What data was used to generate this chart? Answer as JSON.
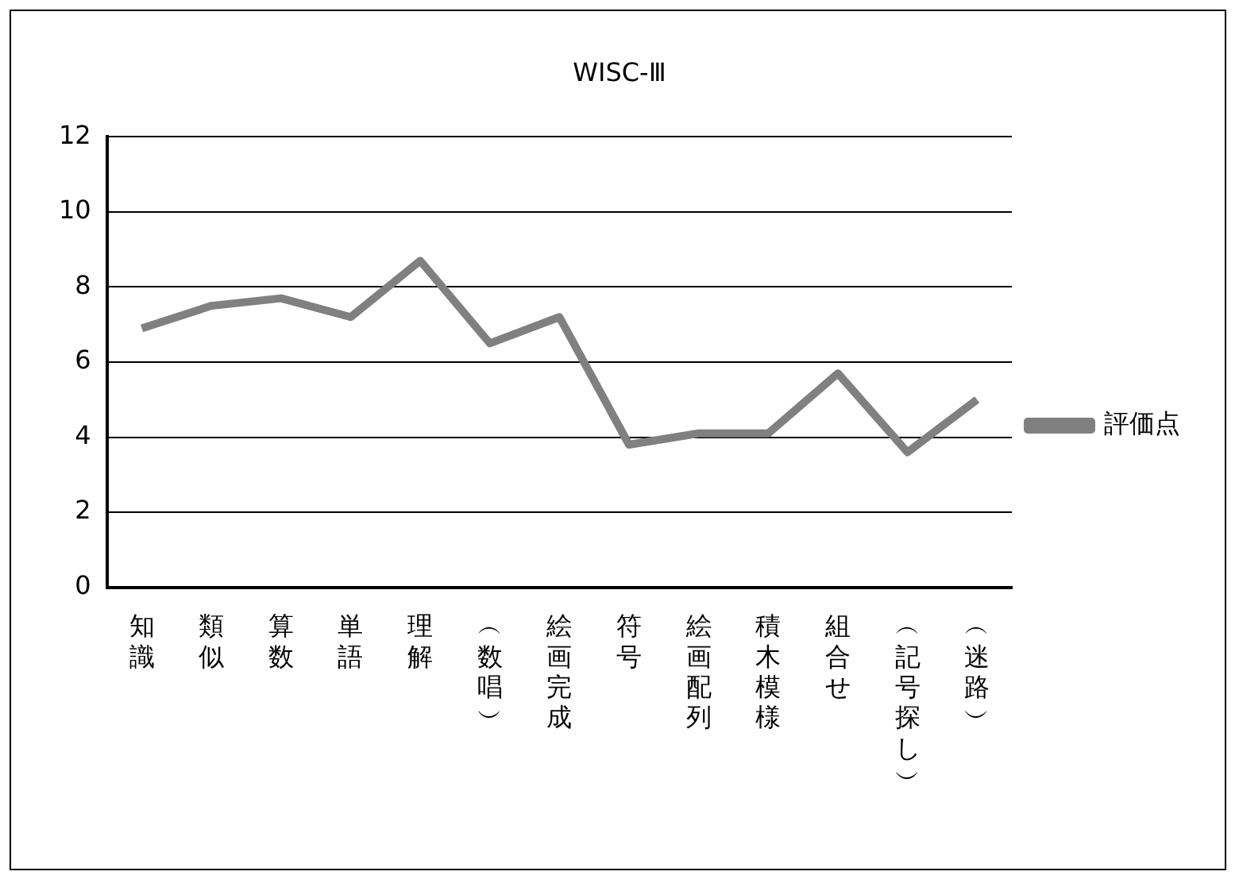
{
  "chart_data": {
    "type": "line",
    "title": "WISC-Ⅲ",
    "categories": [
      "知識",
      "類似",
      "算数",
      "単語",
      "理解",
      "︵数唱︶",
      "絵画完成",
      "符号",
      "絵画配列",
      "積木模様",
      "組合せ",
      "︵記号探し︶",
      "︵迷路︶"
    ],
    "series": [
      {
        "name": "評価点",
        "color": "#808080",
        "values": [
          6.9,
          7.5,
          7.7,
          7.2,
          8.7,
          6.5,
          7.2,
          3.8,
          4.1,
          4.1,
          5.7,
          3.6,
          5.0
        ]
      }
    ],
    "ylim": [
      0,
      12
    ],
    "yticks": [
      0,
      2,
      4,
      6,
      8,
      10,
      12
    ],
    "grid": "y",
    "legend": "right",
    "marker": "none",
    "line_style": "solid"
  }
}
